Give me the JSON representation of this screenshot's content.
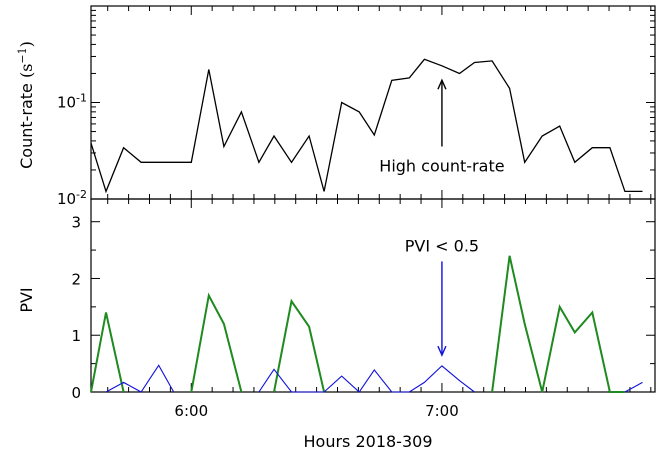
{
  "chart_data": [
    {
      "type": "line",
      "panel": "top",
      "ylabel": "Count-rate",
      "ylabel_unit": "(s",
      "ylabel_unit_exp": "−1",
      "ylabel_unit_close": ")",
      "yscale": "log",
      "ylim": [
        0.01,
        1.0
      ],
      "yticks": [
        {
          "value": 0.01,
          "base": "10",
          "exp": "-2"
        },
        {
          "value": 0.1,
          "base": "10",
          "exp": "-1"
        }
      ],
      "xlim": [
        5.6,
        7.85
      ],
      "series": [
        {
          "color": "#000000",
          "x": [
            5.6,
            5.66,
            5.73,
            5.8,
            5.87,
            5.93,
            6.0,
            6.07,
            6.13,
            6.2,
            6.27,
            6.33,
            6.4,
            6.47,
            6.53,
            6.6,
            6.67,
            6.73,
            6.8,
            6.87,
            6.93,
            7.0,
            7.07,
            7.13,
            7.2,
            7.27,
            7.33,
            7.4,
            7.47,
            7.53,
            7.6,
            7.67,
            7.73,
            7.8
          ],
          "values": [
            0.038,
            0.012,
            0.034,
            0.024,
            0.024,
            0.024,
            0.024,
            0.22,
            0.035,
            0.08,
            0.024,
            0.045,
            0.024,
            0.045,
            0.012,
            0.1,
            0.08,
            0.046,
            0.17,
            0.18,
            0.28,
            0.24,
            0.2,
            0.26,
            0.27,
            0.14,
            0.024,
            0.045,
            0.057,
            0.024,
            0.034,
            0.034,
            0.012,
            0.012
          ]
        }
      ],
      "annotation": {
        "text": "High count-rate",
        "x": 7.0,
        "y_from": 0.035,
        "y_to": 0.17,
        "color": "#000000"
      }
    },
    {
      "type": "line",
      "panel": "bottom",
      "ylabel": "PVI",
      "ylim": [
        0,
        3.4
      ],
      "yticks": [
        0,
        1,
        2,
        3
      ],
      "xlim": [
        5.6,
        7.85
      ],
      "xlabel": "Hours 2018-309",
      "xticks": [
        {
          "value": 6.0,
          "label": "6:00"
        },
        {
          "value": 7.0,
          "label": "7:00"
        }
      ],
      "series": [
        {
          "color": "#1f8a1f",
          "x": [
            5.6,
            5.66,
            5.73,
            5.8,
            5.87,
            5.93,
            6.0,
            6.07,
            6.13,
            6.2,
            6.27,
            6.33,
            6.4,
            6.47,
            6.53,
            6.6,
            6.67,
            6.73,
            6.8,
            6.87,
            6.93,
            7.0,
            7.07,
            7.13,
            7.2,
            7.27,
            7.33,
            7.4,
            7.47,
            7.53,
            7.6,
            7.67,
            7.73,
            7.8
          ],
          "values": [
            0,
            1.4,
            0,
            null,
            null,
            null,
            0,
            1.7,
            1.2,
            0,
            null,
            0,
            1.6,
            1.15,
            0,
            null,
            null,
            null,
            null,
            null,
            null,
            null,
            null,
            null,
            0,
            2.4,
            1.2,
            0,
            1.5,
            1.05,
            1.4,
            0,
            0,
            null
          ]
        },
        {
          "color": "#1010dd",
          "x": [
            5.66,
            5.73,
            5.8,
            5.87,
            5.93,
            6.0,
            6.27,
            6.33,
            6.4,
            6.53,
            6.6,
            6.67,
            6.73,
            6.8,
            6.87,
            6.93,
            7.0,
            7.07,
            7.13,
            7.2,
            7.73,
            7.8
          ],
          "values": [
            0,
            0.17,
            0,
            0.47,
            0,
            null,
            0,
            0.4,
            0,
            0,
            0.28,
            0,
            0.39,
            0,
            0,
            0.17,
            0.46,
            0.2,
            0,
            null,
            0,
            0.17
          ]
        }
      ],
      "annotation": {
        "text": "PVI < 0.5",
        "x": 7.0,
        "y_from": 2.3,
        "y_to": 0.65,
        "color": "#1010dd"
      }
    }
  ]
}
